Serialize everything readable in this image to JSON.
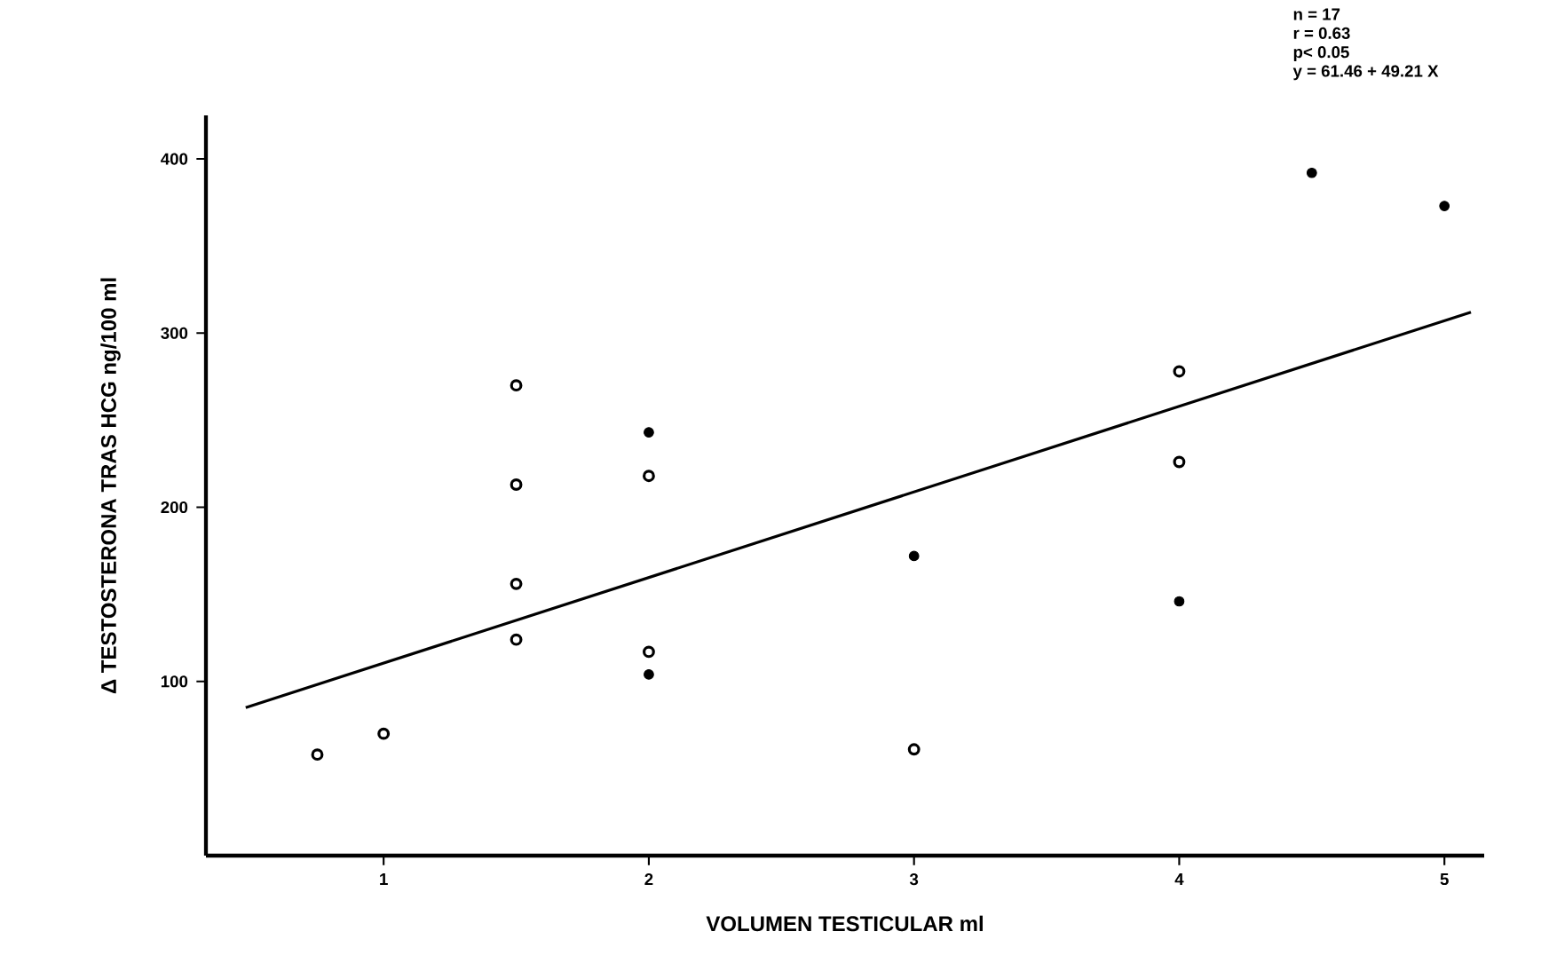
{
  "chart_data": {
    "type": "scatter",
    "xlabel": "VOLUMEN TESTICULAR ml",
    "ylabel": "Δ TESTOSTERONA TRAS HCG ng/100 ml",
    "annotations": [
      "n = 17",
      "r = 0.63",
      "p< 0.05",
      "y = 61.46 + 49.21 X"
    ],
    "xlim": [
      0.33,
      5.15
    ],
    "ylim": [
      0,
      425
    ],
    "xticks": [
      1,
      2,
      3,
      4,
      5
    ],
    "yticks": [
      100,
      200,
      300,
      400
    ],
    "series": [
      {
        "color": "#000000",
        "marker": "circle_open",
        "x": [
          0.75,
          1,
          1.5,
          1.5,
          1.5,
          1.5,
          2,
          2,
          3,
          4,
          4
        ],
        "values": [
          58,
          70,
          270,
          213,
          156,
          124,
          218,
          117,
          61,
          278,
          226
        ]
      },
      {
        "color": "#000000",
        "marker": "circle",
        "x": [
          2,
          2,
          3,
          4,
          4.5,
          5
        ],
        "values": [
          243,
          104,
          172,
          146,
          392,
          373
        ]
      },
      {
        "type": "line",
        "color": "#000000",
        "marker": "none",
        "line_style": "solid",
        "x": [
          0.48,
          5.1
        ],
        "values": [
          85,
          312
        ]
      }
    ]
  }
}
